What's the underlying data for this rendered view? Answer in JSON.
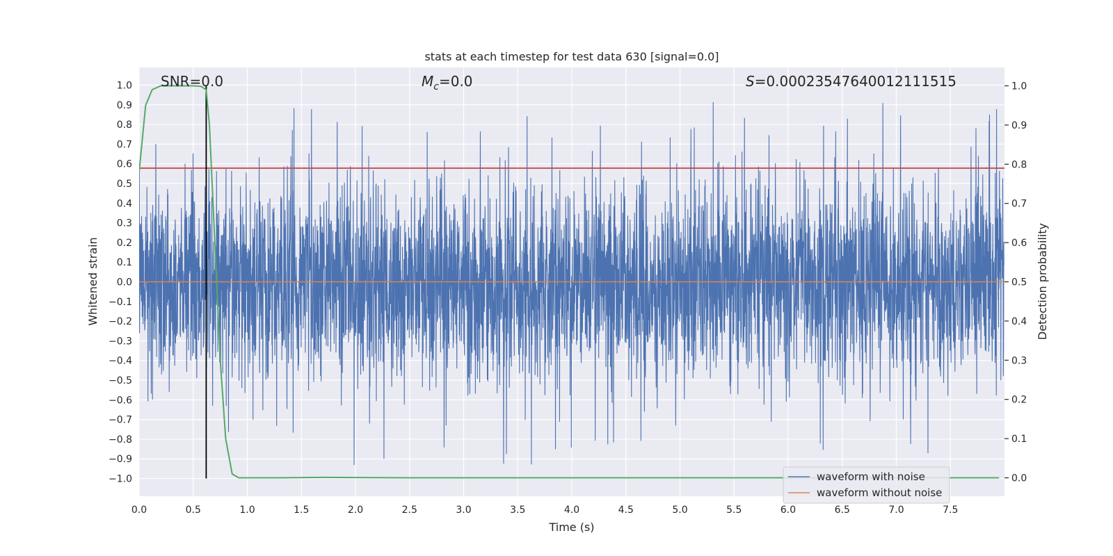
{
  "chart_data": {
    "type": "line",
    "title": "stats at each timestep for test data 630 [signal=0.0]",
    "xlabel": "Time (s)",
    "ylabel": "Whitened strain",
    "y2label": "Detection probability",
    "xlim": [
      0.0,
      8.0
    ],
    "ylim": [
      -1.09,
      1.09
    ],
    "y2lim": [
      -0.047,
      1.047
    ],
    "xticks": [
      "0.0",
      "0.5",
      "1.0",
      "1.5",
      "2.0",
      "2.5",
      "3.0",
      "3.5",
      "4.0",
      "4.5",
      "5.0",
      "5.5",
      "6.0",
      "6.5",
      "7.0",
      "7.5"
    ],
    "yticks": [
      "1.0",
      "0.9",
      "0.8",
      "0.7",
      "0.6",
      "0.5",
      "0.4",
      "0.3",
      "0.2",
      "0.1",
      "0.0",
      "−0.1",
      "−0.2",
      "−0.3",
      "−0.4",
      "−0.5",
      "−0.6",
      "−0.7",
      "−0.8",
      "−0.9",
      "−1.0"
    ],
    "y2ticks": [
      "1.0",
      "0.9",
      "0.8",
      "0.7",
      "0.6",
      "0.5",
      "0.4",
      "0.3",
      "0.2",
      "0.1",
      "0.0"
    ],
    "grid": true,
    "legend_position": "lower-right",
    "annotations": {
      "snr": "SNR=0.0",
      "mc_symbol": "M",
      "mc_sub": "c",
      "mc_value": "=0.0",
      "s_symbol": "S",
      "s_value": "=0.00023547640012111515"
    },
    "threshold": 0.79,
    "vline_x": 0.62,
    "series": [
      {
        "name": "waveform with noise",
        "color": "#4c72b0",
        "axis": "left",
        "kind": "noise",
        "envelope": 0.45,
        "min": -1.0,
        "max": 0.99
      },
      {
        "name": "waveform without noise",
        "color": "#dd8452",
        "axis": "left",
        "kind": "flat",
        "value": 0.0
      },
      {
        "name": "detection probability",
        "color": "#55a868",
        "axis": "right",
        "x": [
          0.0,
          0.06,
          0.12,
          0.2,
          0.3,
          0.4,
          0.5,
          0.57,
          0.62,
          0.65,
          0.7,
          0.75,
          0.8,
          0.86,
          0.92,
          1.0,
          1.3,
          1.7,
          2.5,
          3.5,
          4.5,
          5.5,
          6.5,
          7.5,
          7.95
        ],
        "y": [
          0.78,
          0.95,
          0.99,
          1.0,
          1.0,
          1.0,
          1.0,
          0.999,
          0.99,
          0.9,
          0.6,
          0.3,
          0.1,
          0.01,
          0.0,
          0.0,
          0.0,
          0.001,
          0.0,
          0.0,
          0.0,
          0.0,
          0.0,
          0.0,
          0.0
        ]
      }
    ],
    "colors": {
      "plot_bg": "#eaeaf2",
      "grid": "#ffffff",
      "threshold": "#c44e52",
      "vline": "#000000"
    }
  }
}
